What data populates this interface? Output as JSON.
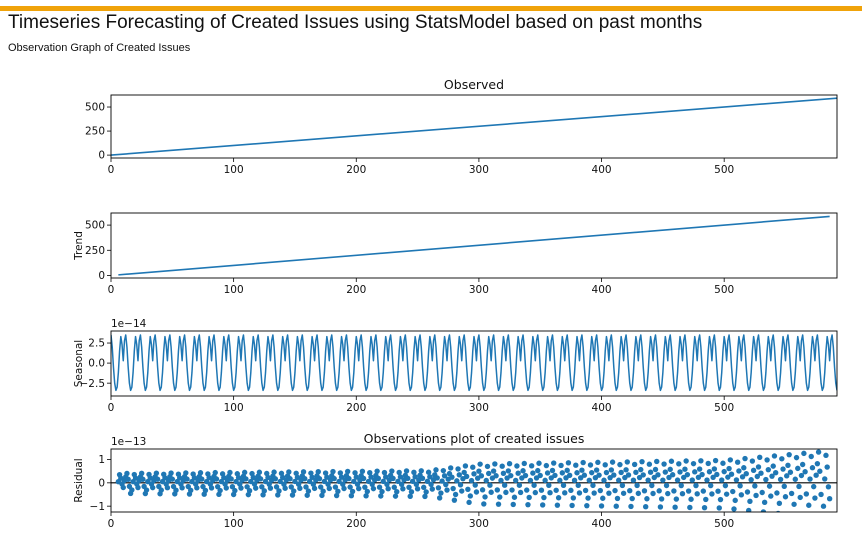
{
  "page": {
    "title": "Timeseries Forecasting of Created Issues using StatsModel based on past months",
    "subtitle": "Observation Graph of Created Issues",
    "accent_color": "#f0a30a"
  },
  "chart_data": [
    {
      "type": "line",
      "title": "Observed",
      "xlabel": "",
      "ylabel": "",
      "xlim": [
        0,
        592
      ],
      "ylim": [
        -30,
        625
      ],
      "xticks": [
        0,
        100,
        200,
        300,
        400,
        500
      ],
      "yticks": [
        0,
        250,
        500
      ],
      "series": [
        {
          "x": [
            0,
            592
          ],
          "y": [
            0,
            592
          ]
        }
      ],
      "line_color": "#1f77b4",
      "grid": false
    },
    {
      "type": "line",
      "title": "",
      "xlabel": "",
      "ylabel": "Trend",
      "xlim": [
        0,
        592
      ],
      "ylim": [
        -25,
        620
      ],
      "xticks": [
        0,
        100,
        200,
        300,
        400,
        500
      ],
      "yticks": [
        0,
        250,
        500
      ],
      "series": [
        {
          "x": [
            6,
            586
          ],
          "y": [
            6,
            586
          ]
        }
      ],
      "line_color": "#1f77b4",
      "grid": false
    },
    {
      "type": "line",
      "title": "",
      "xlabel": "",
      "ylabel": "Seasonal",
      "offset_text": "1e−14",
      "xlim": [
        0,
        592
      ],
      "ylim": [
        -4.1,
        4.0
      ],
      "xticks": [
        0,
        100,
        200,
        300,
        400,
        500
      ],
      "yticks": [
        2.5,
        0.0,
        -2.5
      ],
      "ytick_labels": [
        "2.5",
        "0.0",
        "−2.5"
      ],
      "period": 12,
      "pattern": [
        3.5,
        2.0,
        -0.5,
        -2.5,
        -3.4,
        -3.0,
        -1.2,
        1.5,
        3.3,
        2.3,
        0.3,
        2.8
      ],
      "line_color": "#1f77b4",
      "grid": false
    },
    {
      "type": "scatter",
      "title": "Observations plot of created issues",
      "xlabel": "",
      "ylabel": "Residual",
      "offset_text": "1e−13",
      "xlim": [
        0,
        592
      ],
      "ylim": [
        -1.25,
        1.45
      ],
      "xticks": [
        0,
        100,
        200,
        300,
        400,
        500
      ],
      "yticks": [
        1,
        0,
        -1
      ],
      "ytick_labels": [
        "1",
        "0",
        "−1"
      ],
      "period": 12,
      "x_start": 6,
      "x_end": 586,
      "pattern": [
        0.25,
        0.4,
        0.15,
        -0.15,
        -0.45,
        -0.3,
        0.05,
        0.35,
        0.2,
        -0.05,
        -0.2,
        0.1
      ],
      "amplitude_growth": [
        {
          "x": 6,
          "scale": 1.0
        },
        {
          "x": 260,
          "scale": 1.3
        },
        {
          "x": 300,
          "scale": 2.0
        },
        {
          "x": 500,
          "scale": 2.4
        },
        {
          "x": 586,
          "scale": 3.4
        }
      ],
      "zero_line": true,
      "marker_color": "#1f77b4",
      "grid": false
    }
  ]
}
